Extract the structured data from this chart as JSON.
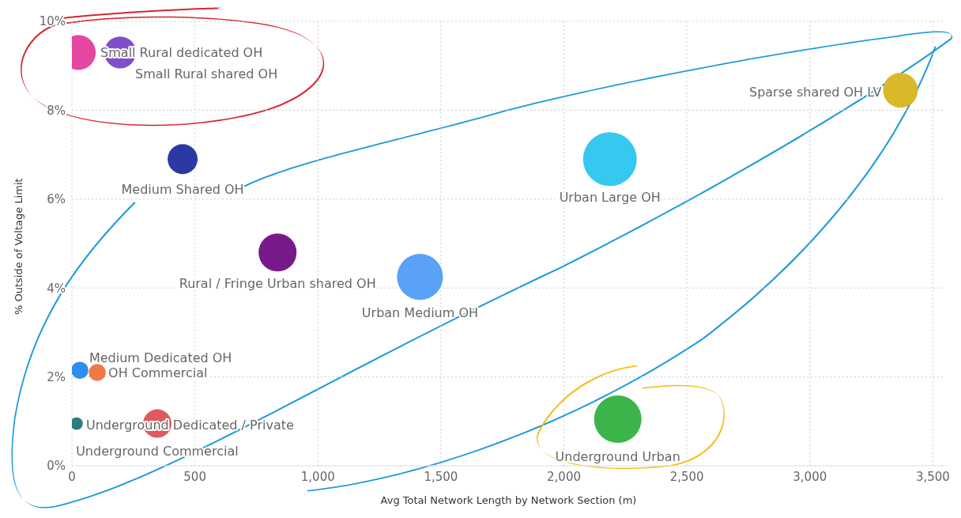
{
  "chart_data": {
    "type": "bubble",
    "xlabel": "Avg Total Network Length by Network Section (m)",
    "ylabel": "% Outside of Voltage Limit",
    "xlim": [
      0,
      3550
    ],
    "ylim": [
      0,
      10
    ],
    "xticks": [
      0,
      500,
      {
        "value": 1000,
        "label": "1,000"
      },
      {
        "value": 1500,
        "label": "1,500"
      },
      {
        "value": 2000,
        "label": "2,000"
      },
      {
        "value": 2500,
        "label": "2,500"
      },
      {
        "value": 3000,
        "label": "3,000"
      },
      {
        "value": 3500,
        "label": "3,500"
      }
    ],
    "yticks": [
      {
        "value": 0,
        "label": "0%"
      },
      {
        "value": 2,
        "label": "2%"
      },
      {
        "value": 4,
        "label": "4%"
      },
      {
        "value": 6,
        "label": "6%"
      },
      {
        "value": 8,
        "label": "8%"
      },
      {
        "value": 10,
        "label": "10%"
      }
    ],
    "grid": true,
    "series": [
      {
        "name": "Small Rural dedicated OH",
        "color": "#e3479f",
        "x": [
          26
        ],
        "values": [
          9.3
        ],
        "sizes": [
          0.42
        ]
      },
      {
        "name": "Small Rural shared OH",
        "color": "#7f4fc9",
        "x": [
          196
        ],
        "values": [
          9.3
        ],
        "sizes": [
          0.35
        ]
      },
      {
        "name": "Medium Shared OH",
        "color": "#2b3aa3",
        "x": [
          450
        ],
        "values": [
          6.9
        ],
        "sizes": [
          0.31
        ]
      },
      {
        "name": "Rural / Fringe Urban shared OH",
        "color": "#78198a",
        "x": [
          836
        ],
        "values": [
          4.8
        ],
        "sizes": [
          0.5
        ]
      },
      {
        "name": "Urban Medium OH",
        "color": "#5aa2f7",
        "x": [
          1415
        ],
        "values": [
          4.25
        ],
        "sizes": [
          0.73
        ]
      },
      {
        "name": "Urban Large OH",
        "color": "#35c9ef",
        "x": [
          2187
        ],
        "values": [
          6.9
        ],
        "sizes": [
          1
        ]
      },
      {
        "name": "Sparse shared OH LV",
        "color": "#d9b82a",
        "x": [
          3368
        ],
        "values": [
          8.45
        ],
        "sizes": [
          0.42
        ]
      },
      {
        "name": "Medium Dedicated OH",
        "color": "#2d8ef0",
        "x": [
          32
        ],
        "values": [
          2.15
        ],
        "sizes": [
          0.1
        ]
      },
      {
        "name": "OH Commercial",
        "color": "#ef7a45",
        "x": [
          103
        ],
        "values": [
          2.1
        ],
        "sizes": [
          0.1
        ]
      },
      {
        "name": "Underground Dedicated / Private",
        "color": "#df5a5e",
        "x": [
          347
        ],
        "values": [
          0.95
        ],
        "sizes": [
          0.28
        ]
      },
      {
        "name": "Underground Commercial",
        "color": "#2f7d80",
        "x": [
          19
        ],
        "values": [
          0.95
        ],
        "sizes": [
          0.055
        ]
      },
      {
        "name": "Underground Urban",
        "color": "#3bb54a",
        "x": [
          2219
        ],
        "values": [
          1.05
        ],
        "sizes": [
          0.78
        ]
      }
    ]
  }
}
